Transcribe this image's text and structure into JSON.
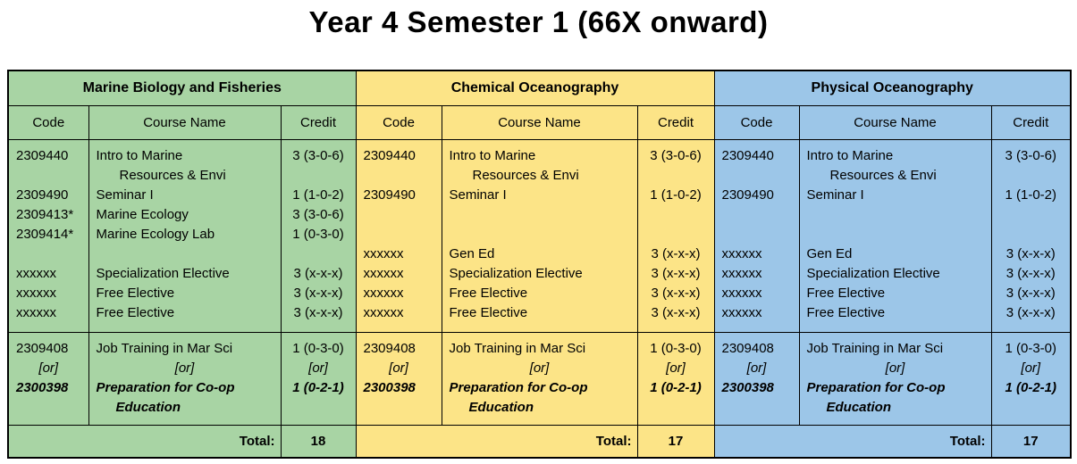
{
  "title": "Year 4 Semester 1 (66X onward)",
  "column_headers": [
    "Code",
    "Course Name",
    "Credit"
  ],
  "total_label": "Total:",
  "colors": {
    "green": "#a8d4a4",
    "yellow": "#fce487",
    "blue": "#9cc6e8",
    "border": "#000000"
  },
  "sections": [
    {
      "name": "Marine Biology and Fisheries",
      "theme": "green",
      "course_lines": [
        {
          "code": "2309440",
          "name": "Intro to Marine",
          "credit": "3 (3-0-6)"
        },
        {
          "code": "",
          "name": "Resources & Envi",
          "credit": "",
          "ncls": "indent"
        },
        {
          "code": "2309490",
          "name": "Seminar I",
          "credit": "1 (1-0-2)"
        },
        {
          "code": "2309413*",
          "name": "Marine Ecology",
          "credit": "3 (3-0-6)"
        },
        {
          "code": "2309414*",
          "name": "Marine Ecology Lab",
          "credit": "1 (0-3-0)"
        },
        {
          "code": "",
          "name": "",
          "credit": ""
        },
        {
          "code": "xxxxxx",
          "name": "Specialization Elective",
          "credit": "3 (x-x-x)"
        },
        {
          "code": "xxxxxx",
          "name": "Free Elective",
          "credit": "3 (x-x-x)"
        },
        {
          "code": "xxxxxx",
          "name": "Free Elective",
          "credit": "3 (x-x-x)"
        }
      ],
      "or_lines": [
        {
          "code": "2309408",
          "name": "Job Training in Mar Sci",
          "credit": "1 (0-3-0)",
          "cls": ""
        },
        {
          "code": "[or]",
          "name": "[or]",
          "credit": "[or]",
          "cls": "or-line"
        },
        {
          "code": "2300398",
          "name": "Preparation for Co-op",
          "credit": "1 (0-2-1)",
          "cls": "alt-line"
        },
        {
          "code": "",
          "name": "Education",
          "credit": "",
          "cls": "alt-line cont-line"
        }
      ],
      "total": "18"
    },
    {
      "name": "Chemical Oceanography",
      "theme": "yellow",
      "course_lines": [
        {
          "code": "2309440",
          "name": "Intro to Marine",
          "credit": "3 (3-0-6)"
        },
        {
          "code": "",
          "name": "Resources & Envi",
          "credit": "",
          "ncls": "indent"
        },
        {
          "code": "2309490",
          "name": "Seminar I",
          "credit": "1 (1-0-2)"
        },
        {
          "code": "",
          "name": "",
          "credit": ""
        },
        {
          "code": "",
          "name": "",
          "credit": ""
        },
        {
          "code": "xxxxxx",
          "name": "Gen Ed",
          "credit": "3 (x-x-x)"
        },
        {
          "code": "xxxxxx",
          "name": "Specialization Elective",
          "credit": "3 (x-x-x)"
        },
        {
          "code": "xxxxxx",
          "name": "Free Elective",
          "credit": "3 (x-x-x)"
        },
        {
          "code": "xxxxxx",
          "name": "Free Elective",
          "credit": "3 (x-x-x)"
        }
      ],
      "or_lines": [
        {
          "code": "2309408",
          "name": "Job Training in Mar Sci",
          "credit": "1 (0-3-0)",
          "cls": ""
        },
        {
          "code": "[or]",
          "name": "[or]",
          "credit": "[or]",
          "cls": "or-line"
        },
        {
          "code": "2300398",
          "name": "Preparation for Co-op",
          "credit": "1 (0-2-1)",
          "cls": "alt-line"
        },
        {
          "code": "",
          "name": "Education",
          "credit": "",
          "cls": "alt-line cont-line"
        }
      ],
      "total": "17"
    },
    {
      "name": "Physical Oceanography",
      "theme": "blue",
      "course_lines": [
        {
          "code": "2309440",
          "name": "Intro to Marine",
          "credit": "3 (3-0-6)"
        },
        {
          "code": "",
          "name": "Resources & Envi",
          "credit": "",
          "ncls": "indent"
        },
        {
          "code": "2309490",
          "name": "Seminar I",
          "credit": "1 (1-0-2)"
        },
        {
          "code": "",
          "name": "",
          "credit": ""
        },
        {
          "code": "",
          "name": "",
          "credit": ""
        },
        {
          "code": "xxxxxx",
          "name": "Gen Ed",
          "credit": "3 (x-x-x)"
        },
        {
          "code": "xxxxxx",
          "name": "Specialization Elective",
          "credit": "3 (x-x-x)"
        },
        {
          "code": "xxxxxx",
          "name": "Free Elective",
          "credit": "3 (x-x-x)"
        },
        {
          "code": "xxxxxx",
          "name": "Free Elective",
          "credit": "3 (x-x-x)"
        }
      ],
      "or_lines": [
        {
          "code": "2309408",
          "name": "Job Training in Mar Sci",
          "credit": "1 (0-3-0)",
          "cls": ""
        },
        {
          "code": "[or]",
          "name": "[or]",
          "credit": "[or]",
          "cls": "or-line"
        },
        {
          "code": "2300398",
          "name": "Preparation for Co-op",
          "credit": "1 (0-2-1)",
          "cls": "alt-line"
        },
        {
          "code": "",
          "name": "Education",
          "credit": "",
          "cls": "alt-line cont-line"
        }
      ],
      "total": "17"
    }
  ]
}
